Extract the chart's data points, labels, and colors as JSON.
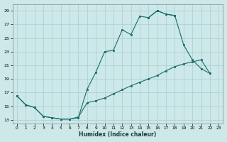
{
  "xlabel": "Humidex (Indice chaleur)",
  "bg_color": "#cce8e8",
  "grid_color": "#aacece",
  "line_color": "#1a6b6b",
  "xlim": [
    -0.5,
    23.5
  ],
  "ylim": [
    12.5,
    30.0
  ],
  "yticks": [
    13,
    15,
    17,
    19,
    21,
    23,
    25,
    27,
    29
  ],
  "xticks": [
    0,
    1,
    2,
    3,
    4,
    5,
    6,
    7,
    8,
    9,
    10,
    11,
    12,
    13,
    14,
    15,
    16,
    17,
    18,
    19,
    20,
    21,
    22,
    23
  ],
  "curve1_x": [
    0,
    1,
    2,
    3,
    4,
    5,
    6,
    7,
    8,
    9,
    10,
    11,
    12,
    13,
    14,
    15,
    16,
    17,
    18
  ],
  "curve1_y": [
    16.5,
    15.2,
    14.8,
    13.5,
    13.3,
    13.1,
    13.1,
    13.3,
    17.5,
    20.0,
    23.0,
    23.2,
    26.2,
    25.5,
    28.2,
    28.0,
    29.0,
    28.5,
    28.3
  ],
  "curve2_x": [
    15,
    16,
    17,
    18,
    19,
    20,
    21,
    22
  ],
  "curve2_y": [
    28.0,
    29.0,
    28.5,
    28.3,
    24.0,
    21.8,
    20.5,
    19.8
  ],
  "curve3_x": [
    0,
    1,
    2,
    3,
    4,
    5,
    6,
    7,
    8,
    9,
    10,
    11,
    12,
    13,
    14,
    15,
    16,
    17,
    18,
    19,
    20,
    21,
    22
  ],
  "curve3_y": [
    16.5,
    15.2,
    14.8,
    13.5,
    13.3,
    13.1,
    13.1,
    13.4,
    15.5,
    15.8,
    16.2,
    16.8,
    17.4,
    18.0,
    18.5,
    19.0,
    19.5,
    20.2,
    20.8,
    21.2,
    21.5,
    21.8,
    19.8
  ]
}
